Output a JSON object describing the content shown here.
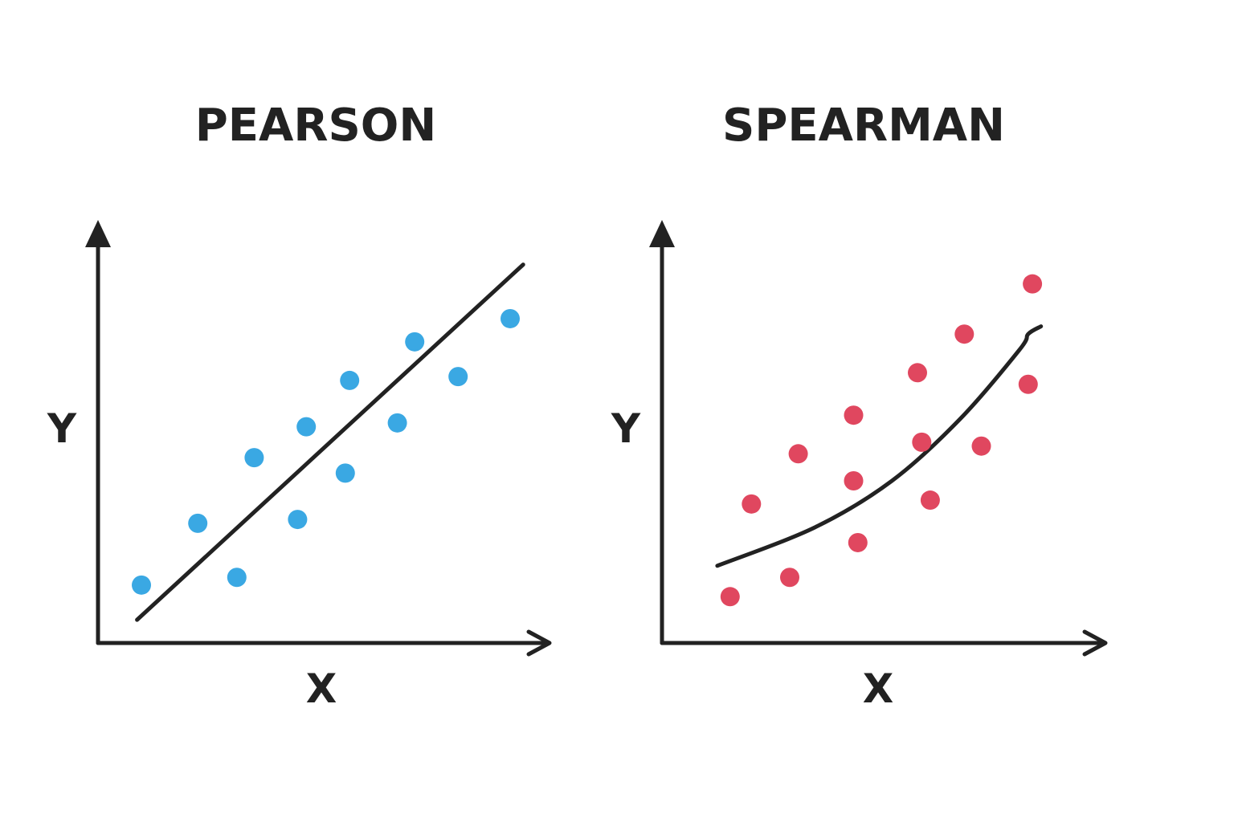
{
  "chart_data": [
    {
      "type": "scatter",
      "title": "PEARSON",
      "xlabel": "X",
      "ylabel": "Y",
      "xlim": [
        0,
        10
      ],
      "ylim": [
        0,
        10
      ],
      "grid": false,
      "point_color": "#3aa8e3",
      "trend": "linear",
      "trend_line": {
        "x": [
          0.9,
          9.8
        ],
        "y": [
          0.6,
          9.8
        ]
      },
      "series": [
        {
          "x": [
            1.0,
            2.3,
            3.2,
            3.6,
            4.6,
            4.8,
            5.7,
            5.8,
            6.9,
            7.3,
            8.3,
            9.5
          ],
          "y": [
            1.5,
            3.1,
            1.7,
            4.8,
            3.2,
            5.6,
            4.4,
            6.8,
            5.7,
            7.8,
            6.9,
            8.4
          ]
        }
      ]
    },
    {
      "type": "scatter",
      "title": "SPEARMAN",
      "xlabel": "X",
      "ylabel": "Y",
      "xlim": [
        0,
        10
      ],
      "ylim": [
        0,
        10
      ],
      "grid": false,
      "point_color": "#e0475f",
      "trend": "monotonic-curve",
      "trend_line": {
        "x": [
          1.3,
          3.6,
          5.4,
          7.0,
          8.4,
          8.6,
          8.9
        ],
        "y": [
          2.0,
          3.0,
          4.2,
          5.8,
          7.6,
          8.0,
          8.2
        ]
      },
      "series": [
        {
          "x": [
            1.6,
            2.1,
            3.0,
            3.2,
            4.5,
            4.5,
            4.6,
            6.0,
            6.1,
            6.3,
            7.1,
            7.5,
            8.6,
            8.7
          ],
          "y": [
            1.2,
            3.6,
            1.7,
            4.9,
            4.2,
            5.9,
            2.6,
            7.0,
            5.2,
            3.7,
            8.0,
            5.1,
            6.7,
            9.3
          ]
        }
      ]
    }
  ]
}
